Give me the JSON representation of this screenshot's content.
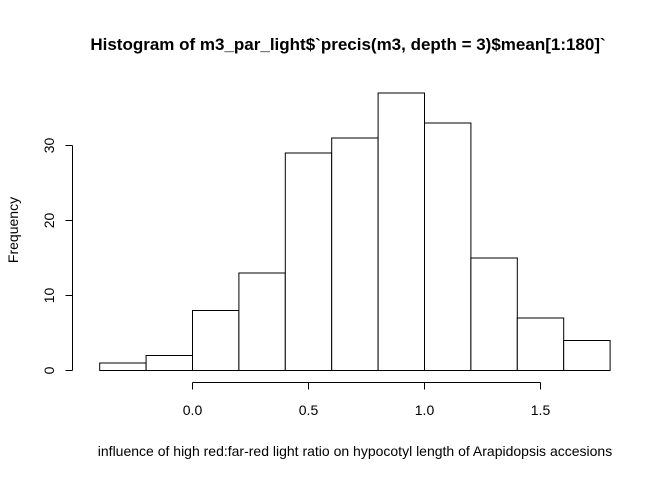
{
  "chart_data": {
    "type": "bar",
    "title": "Histogram of m3_par_light$`precis(m3, depth = 3)$mean[1:180]`",
    "xlabel": "influence of high red:far-red light ratio on hypocotyl length of Arapidopsis accesions",
    "ylabel": "Frequency",
    "bins": [
      {
        "from": -0.4,
        "to": -0.2,
        "count": 1
      },
      {
        "from": -0.2,
        "to": 0.0,
        "count": 2
      },
      {
        "from": 0.0,
        "to": 0.2,
        "count": 8
      },
      {
        "from": 0.2,
        "to": 0.4,
        "count": 13
      },
      {
        "from": 0.4,
        "to": 0.6,
        "count": 29
      },
      {
        "from": 0.6,
        "to": 0.8,
        "count": 31
      },
      {
        "from": 0.8,
        "to": 1.0,
        "count": 37
      },
      {
        "from": 1.0,
        "to": 1.2,
        "count": 33
      },
      {
        "from": 1.2,
        "to": 1.4,
        "count": 15
      },
      {
        "from": 1.4,
        "to": 1.6,
        "count": 7
      },
      {
        "from": 1.6,
        "to": 1.8,
        "count": 4
      }
    ],
    "xticks": [
      "0.0",
      "0.5",
      "1.0",
      "1.5"
    ],
    "xtick_values": [
      0.0,
      0.5,
      1.0,
      1.5
    ],
    "yticks": [
      "0",
      "10",
      "20",
      "30"
    ],
    "ytick_values": [
      0,
      10,
      20,
      30
    ],
    "xlim": [
      -0.4,
      1.8
    ],
    "ylim": [
      0,
      37
    ],
    "grid": false,
    "legend": "none"
  }
}
